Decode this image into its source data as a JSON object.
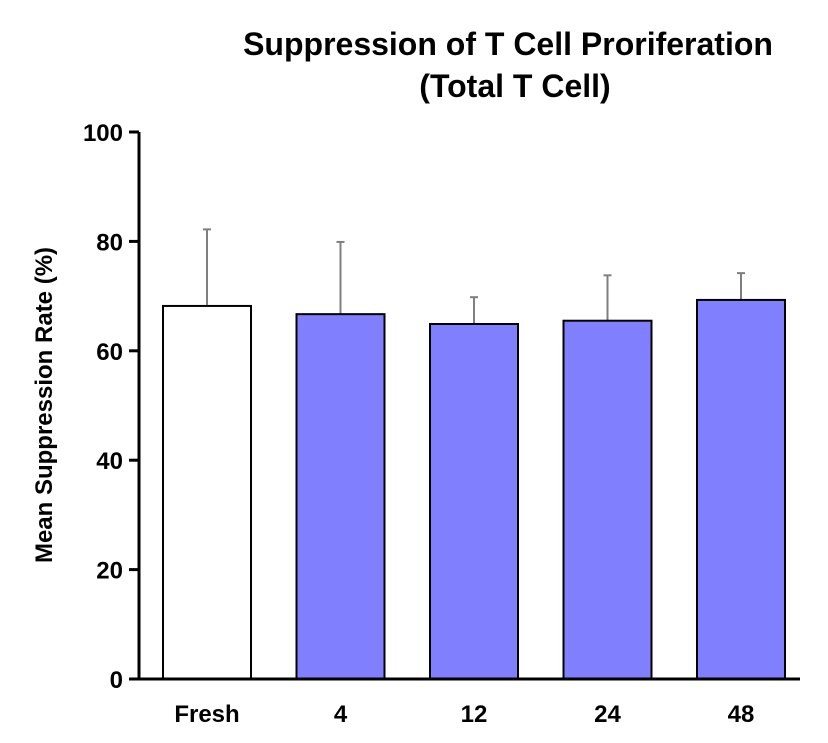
{
  "chart_data": {
    "type": "bar",
    "title": "Suppression of T Cell Proriferation",
    "subtitle": "(Total T Cell)",
    "xlabel": "",
    "ylabel": "Mean Suppression Rate (%)",
    "ylim": [
      0,
      100
    ],
    "yticks": [
      0,
      20,
      40,
      60,
      80,
      100
    ],
    "grid": false,
    "categories": [
      "Fresh",
      "4",
      "12",
      "24",
      "48"
    ],
    "values": [
      68.2,
      66.7,
      64.9,
      65.5,
      69.3
    ],
    "error_upper": [
      14.0,
      13.2,
      4.9,
      8.3,
      4.9
    ],
    "bar_colors": [
      "#ffffff",
      "#8080ff",
      "#8080ff",
      "#8080ff",
      "#8080ff"
    ],
    "bar_edge_color": "#000000",
    "error_bar_color": "#7f7f7f"
  }
}
